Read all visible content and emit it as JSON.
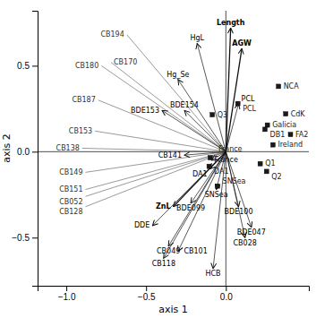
{
  "chart_data": {
    "type": "biplot",
    "xlabel": "axis 1",
    "ylabel": "axis 2",
    "xlim": [
      -1.18,
      0.52
    ],
    "ylim": [
      -0.78,
      0.82
    ],
    "xticks": [
      {
        "value": -1.0,
        "label": "−1.0"
      },
      {
        "value": -0.5,
        "label": "−0.5"
      },
      {
        "value": 0.0,
        "label": "0.0"
      }
    ],
    "yticks": [
      {
        "value": -0.5,
        "label": "−0.5"
      },
      {
        "value": 0.0,
        "label": "0.0"
      },
      {
        "value": 0.5,
        "label": "0.5"
      }
    ],
    "grid": false,
    "origin": {
      "x": 0.0,
      "y": 0.0
    },
    "arrows": {
      "color": "#111111",
      "points": [
        {
          "label": "Length",
          "x": 0.03,
          "y": 0.72,
          "bold": true
        },
        {
          "label": "AGW",
          "x": 0.1,
          "y": 0.6,
          "bold": true
        },
        {
          "label": "HgL",
          "x": -0.18,
          "y": 0.63,
          "bold": false
        },
        {
          "label": "Hg_Se",
          "x": -0.3,
          "y": 0.42,
          "bold": false
        },
        {
          "label": "BDE153",
          "x": -0.4,
          "y": 0.24,
          "bold": false
        },
        {
          "label": "BDE154",
          "x": -0.26,
          "y": 0.24,
          "bold": false
        },
        {
          "label": "ZnL",
          "x": -0.33,
          "y": -0.32,
          "bold": true
        },
        {
          "label": "BDE099",
          "x": -0.22,
          "y": -0.3,
          "bold": false
        },
        {
          "label": "BDE100",
          "x": 0.08,
          "y": -0.32,
          "bold": false
        },
        {
          "label": "BDE047",
          "x": 0.16,
          "y": -0.44,
          "bold": false
        },
        {
          "label": "CB028",
          "x": 0.12,
          "y": -0.5,
          "bold": false
        },
        {
          "label": "DDE",
          "x": -0.46,
          "y": -0.43,
          "bold": false
        },
        {
          "label": "CB049",
          "x": -0.36,
          "y": -0.55,
          "bold": false
        },
        {
          "label": "CB101",
          "x": -0.3,
          "y": -0.58,
          "bold": false
        },
        {
          "label": "CB118",
          "x": -0.39,
          "y": -0.62,
          "bold": false
        },
        {
          "label": "HCB",
          "x": -0.08,
          "y": -0.68,
          "bold": false
        },
        {
          "label": "CB141",
          "x": -0.26,
          "y": -0.02,
          "bold": false
        },
        {
          "label": "SNSea",
          "x": -0.06,
          "y": -0.22,
          "bold": false
        },
        {
          "label": "France",
          "x": -0.09,
          "y": -0.05,
          "bold": false
        },
        {
          "label": "DA1",
          "x": -0.1,
          "y": -0.1,
          "bold": false
        },
        {
          "label": "PCL",
          "x": 0.08,
          "y": 0.28,
          "bold": false
        }
      ]
    },
    "species": {
      "color": "#555555",
      "points": [
        {
          "label": "CB153",
          "x": -0.82,
          "y": 0.12
        },
        {
          "label": "CB138",
          "x": -0.9,
          "y": 0.02
        },
        {
          "label": "CB149",
          "x": -0.88,
          "y": -0.12
        },
        {
          "label": "CB151",
          "x": -0.88,
          "y": -0.22
        },
        {
          "label": "CB052",
          "x": -0.88,
          "y": -0.26
        },
        {
          "label": "CB128",
          "x": -0.88,
          "y": -0.32
        },
        {
          "label": "CB187",
          "x": -0.8,
          "y": 0.3
        },
        {
          "label": "CB180",
          "x": -0.78,
          "y": 0.5
        },
        {
          "label": "CB170",
          "x": -0.72,
          "y": 0.52
        },
        {
          "label": "CB194",
          "x": -0.62,
          "y": 0.68
        }
      ]
    },
    "sites": {
      "color": "#1a1a1a",
      "points": [
        {
          "label": "Q1",
          "x": 0.215,
          "y": -0.07
        },
        {
          "label": "Q2",
          "x": 0.255,
          "y": -0.115
        },
        {
          "label": "Q3",
          "x": -0.085,
          "y": 0.215
        },
        {
          "label": "NCA",
          "x": 0.33,
          "y": 0.38
        },
        {
          "label": "CdK",
          "x": 0.375,
          "y": 0.22
        },
        {
          "label": "FA2",
          "x": 0.405,
          "y": 0.1
        },
        {
          "label": "PCL",
          "x": 0.075,
          "y": 0.28
        },
        {
          "label": "Ireland",
          "x": 0.295,
          "y": 0.04
        },
        {
          "label": "Galicia",
          "x": 0.26,
          "y": 0.155
        },
        {
          "label": "DB1",
          "x": 0.245,
          "y": 0.13
        },
        {
          "label": "France",
          "x": -0.098,
          "y": -0.035
        },
        {
          "label": "DA1",
          "x": -0.105,
          "y": -0.085
        },
        {
          "label": "SNSea",
          "x": -0.052,
          "y": -0.2
        }
      ]
    }
  }
}
